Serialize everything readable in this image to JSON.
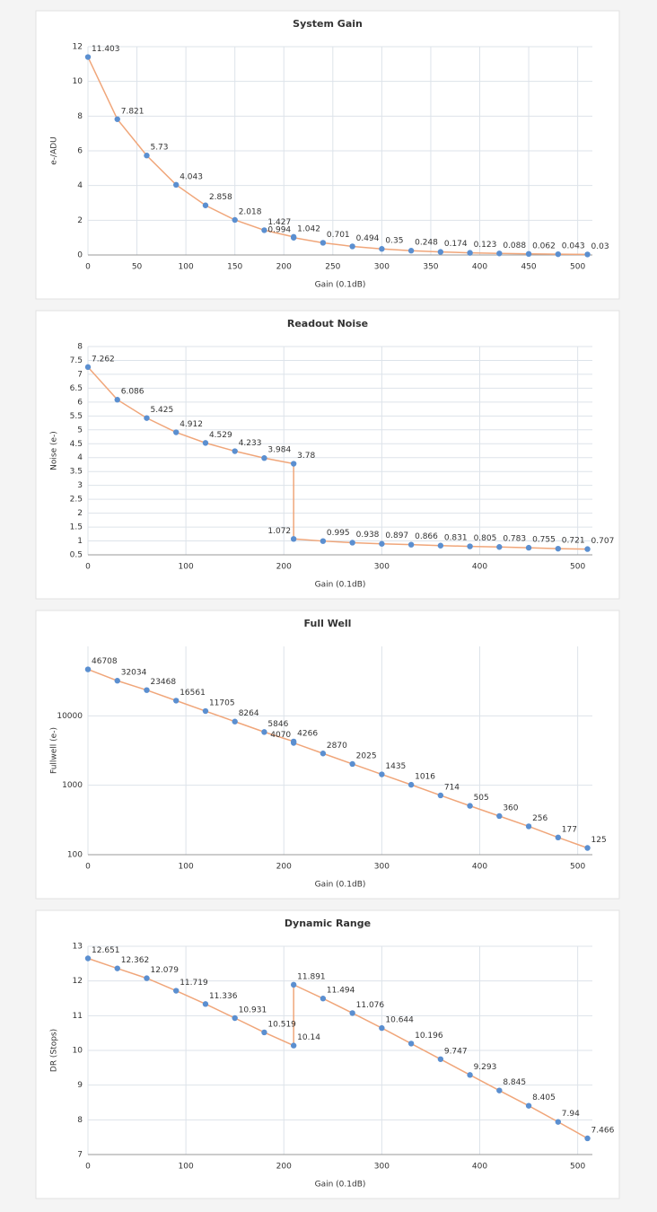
{
  "chart_data": [
    {
      "type": "line",
      "title": "System Gain",
      "x_label": "Gain (0.1dB)",
      "y_label": "e-/ADU",
      "x": [
        0,
        30,
        60,
        90,
        120,
        150,
        180,
        210,
        210,
        240,
        270,
        300,
        330,
        360,
        390,
        420,
        450,
        480,
        510
      ],
      "values": [
        11.403,
        7.821,
        5.73,
        4.043,
        2.858,
        2.018,
        1.427,
        1.042,
        0.994,
        0.701,
        0.494,
        0.35,
        0.248,
        0.174,
        0.123,
        0.088,
        0.062,
        0.043,
        0.03
      ],
      "color": "#f0a67a",
      "marker_color": "#5b8fd0",
      "xlim": [
        0,
        515
      ],
      "xticks": [
        0,
        50,
        100,
        150,
        200,
        250,
        300,
        350,
        400,
        450,
        500
      ],
      "ylim": [
        0,
        12
      ],
      "yticks": [
        0,
        2,
        4,
        6,
        8,
        10,
        12
      ],
      "log_y": false,
      "grid": true
    },
    {
      "type": "line",
      "title": "Readout Noise",
      "x_label": "Gain (0.1dB)",
      "y_label": "Noise (e-)",
      "x": [
        0,
        30,
        60,
        90,
        120,
        150,
        180,
        210,
        210,
        240,
        270,
        300,
        330,
        360,
        390,
        420,
        450,
        480,
        510
      ],
      "values": [
        7.262,
        6.086,
        5.425,
        4.912,
        4.529,
        4.233,
        3.984,
        3.78,
        1.072,
        0.995,
        0.938,
        0.897,
        0.866,
        0.831,
        0.805,
        0.783,
        0.755,
        0.721,
        0.707
      ],
      "color": "#f0a67a",
      "marker_color": "#5b8fd0",
      "xlim": [
        0,
        515
      ],
      "xticks": [
        0,
        100,
        200,
        300,
        400,
        500
      ],
      "ylim": [
        0.5,
        8
      ],
      "yticks": [
        0.5,
        1,
        1.5,
        2,
        2.5,
        3,
        3.5,
        4,
        4.5,
        5,
        5.5,
        6,
        6.5,
        7,
        7.5,
        8
      ],
      "log_y": false,
      "grid": true
    },
    {
      "type": "line",
      "title": "Full Well",
      "x_label": "Gain (0.1dB)",
      "y_label": "Fullwell (e-)",
      "x": [
        0,
        30,
        60,
        90,
        120,
        150,
        180,
        210,
        210,
        240,
        270,
        300,
        330,
        360,
        390,
        420,
        450,
        480,
        510
      ],
      "values": [
        46708,
        32034,
        23468,
        16561,
        11705,
        8264,
        5846,
        4266,
        4070,
        2870,
        2025,
        1435,
        1016,
        714,
        505,
        360,
        256,
        177,
        125
      ],
      "color": "#f0a67a",
      "marker_color": "#5b8fd0",
      "xlim": [
        0,
        515
      ],
      "xticks": [
        0,
        100,
        200,
        300,
        400,
        500
      ],
      "ylim": [
        100,
        100000
      ],
      "yticks": [
        100,
        1000,
        10000
      ],
      "log_y": true,
      "grid": true
    },
    {
      "type": "line",
      "title": "Dynamic Range",
      "x_label": "Gain (0.1dB)",
      "y_label": "DR (Stops)",
      "x": [
        0,
        30,
        60,
        90,
        120,
        150,
        180,
        210,
        210,
        240,
        270,
        300,
        330,
        360,
        390,
        420,
        450,
        480,
        510
      ],
      "values": [
        12.651,
        12.362,
        12.079,
        11.719,
        11.336,
        10.931,
        10.519,
        10.14,
        11.891,
        11.494,
        11.076,
        10.644,
        10.196,
        9.747,
        9.293,
        8.845,
        8.405,
        7.94,
        7.466
      ],
      "color": "#f0a67a",
      "marker_color": "#5b8fd0",
      "xlim": [
        0,
        515
      ],
      "xticks": [
        0,
        100,
        200,
        300,
        400,
        500
      ],
      "ylim": [
        7,
        13
      ],
      "yticks": [
        7,
        8,
        9,
        10,
        11,
        12,
        13
      ],
      "log_y": false,
      "grid": true
    }
  ]
}
